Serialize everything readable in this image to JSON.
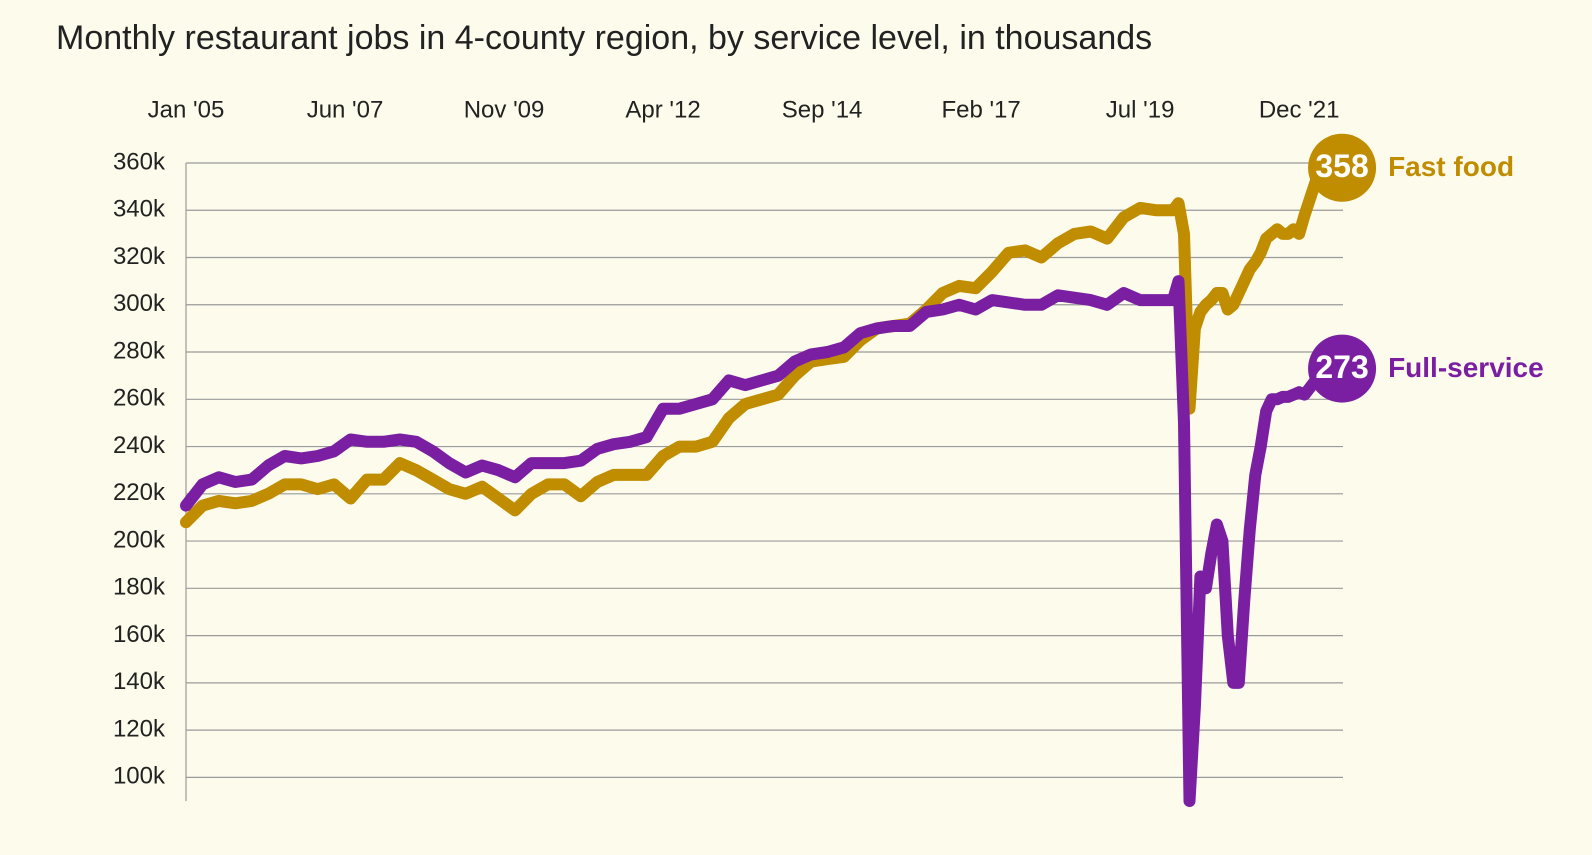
{
  "chart_data": {
    "type": "line",
    "title": "Monthly restaurant jobs in 4-county region, by service level, in thousands",
    "x": [
      "2005-01",
      "2005-04",
      "2005-07",
      "2005-10",
      "2006-01",
      "2006-04",
      "2006-07",
      "2006-10",
      "2007-01",
      "2007-04",
      "2007-07",
      "2007-10",
      "2008-01",
      "2008-04",
      "2008-07",
      "2008-10",
      "2009-01",
      "2009-04",
      "2009-07",
      "2009-10",
      "2010-01",
      "2010-04",
      "2010-07",
      "2010-10",
      "2011-01",
      "2011-04",
      "2011-07",
      "2011-10",
      "2012-01",
      "2012-04",
      "2012-07",
      "2012-10",
      "2013-01",
      "2013-04",
      "2013-07",
      "2013-10",
      "2014-01",
      "2014-04",
      "2014-07",
      "2014-10",
      "2015-01",
      "2015-04",
      "2015-07",
      "2015-10",
      "2016-01",
      "2016-04",
      "2016-07",
      "2016-10",
      "2017-01",
      "2017-04",
      "2017-07",
      "2017-10",
      "2018-01",
      "2018-04",
      "2018-07",
      "2018-10",
      "2019-01",
      "2019-04",
      "2019-07",
      "2019-10",
      "2020-01",
      "2020-02",
      "2020-03",
      "2020-04",
      "2020-05",
      "2020-06",
      "2020-07",
      "2020-08",
      "2020-09",
      "2020-10",
      "2020-11",
      "2020-12",
      "2021-01",
      "2021-02",
      "2021-03",
      "2021-04",
      "2021-05",
      "2021-06",
      "2021-07",
      "2021-08",
      "2021-09",
      "2021-10",
      "2021-11",
      "2021-12",
      "2022-01",
      "2022-02",
      "2022-03",
      "2022-04"
    ],
    "series": [
      {
        "name": "Fast food",
        "color": "#c08c00",
        "values": [
          208,
          215,
          217,
          216,
          217,
          220,
          224,
          224,
          222,
          224,
          218,
          226,
          226,
          233,
          230,
          226,
          222,
          220,
          223,
          218,
          213,
          220,
          224,
          224,
          219,
          225,
          228,
          228,
          228,
          236,
          240,
          240,
          242,
          252,
          258,
          260,
          262,
          270,
          276,
          277,
          278,
          285,
          290,
          291,
          292,
          298,
          305,
          308,
          307,
          314,
          322,
          323,
          320,
          326,
          330,
          331,
          328,
          337,
          341,
          340,
          340,
          343,
          330,
          256,
          290,
          297,
          300,
          302,
          305,
          305,
          298,
          300,
          305,
          310,
          315,
          318,
          322,
          328,
          330,
          332,
          330,
          330,
          332,
          330,
          338,
          345,
          352,
          358
        ]
      },
      {
        "name": "Full-service",
        "color": "#7b1fa2",
        "values": [
          215,
          224,
          227,
          225,
          226,
          232,
          236,
          235,
          236,
          238,
          243,
          242,
          242,
          243,
          242,
          238,
          233,
          229,
          232,
          230,
          227,
          233,
          233,
          233,
          234,
          239,
          241,
          242,
          244,
          256,
          256,
          258,
          260,
          268,
          266,
          268,
          270,
          276,
          279,
          280,
          282,
          288,
          290,
          291,
          291,
          297,
          298,
          300,
          298,
          302,
          301,
          300,
          300,
          304,
          303,
          302,
          300,
          305,
          302,
          302,
          302,
          310,
          250,
          90,
          130,
          185,
          180,
          195,
          207,
          200,
          160,
          140,
          140,
          175,
          205,
          228,
          240,
          255,
          260,
          260,
          261,
          261,
          262,
          263,
          262,
          265,
          268,
          273
        ]
      }
    ],
    "xlim": [
      "2005-01",
      "2022-08"
    ],
    "xticks": [
      {
        "value": "2005-01",
        "label": "Jan '05"
      },
      {
        "value": "2007-06",
        "label": "Jun '07"
      },
      {
        "value": "2009-11",
        "label": "Nov '09"
      },
      {
        "value": "2012-04",
        "label": "Apr '12"
      },
      {
        "value": "2014-09",
        "label": "Sep '14"
      },
      {
        "value": "2017-02",
        "label": "Feb '17"
      },
      {
        "value": "2019-07",
        "label": "Jul '19"
      },
      {
        "value": "2021-12",
        "label": "Dec '21"
      }
    ],
    "ylim": [
      90,
      360
    ],
    "yticks": [
      {
        "value": 100,
        "label": "100k"
      },
      {
        "value": 120,
        "label": "120k"
      },
      {
        "value": 140,
        "label": "140k"
      },
      {
        "value": 160,
        "label": "160k"
      },
      {
        "value": 180,
        "label": "180k"
      },
      {
        "value": 200,
        "label": "200k"
      },
      {
        "value": 220,
        "label": "220k"
      },
      {
        "value": 240,
        "label": "240k"
      },
      {
        "value": 260,
        "label": "260k"
      },
      {
        "value": 280,
        "label": "280k"
      },
      {
        "value": 300,
        "label": "300k"
      },
      {
        "value": 320,
        "label": "320k"
      },
      {
        "value": 340,
        "label": "340k"
      },
      {
        "value": 360,
        "label": "360k"
      }
    ],
    "grid": true
  }
}
